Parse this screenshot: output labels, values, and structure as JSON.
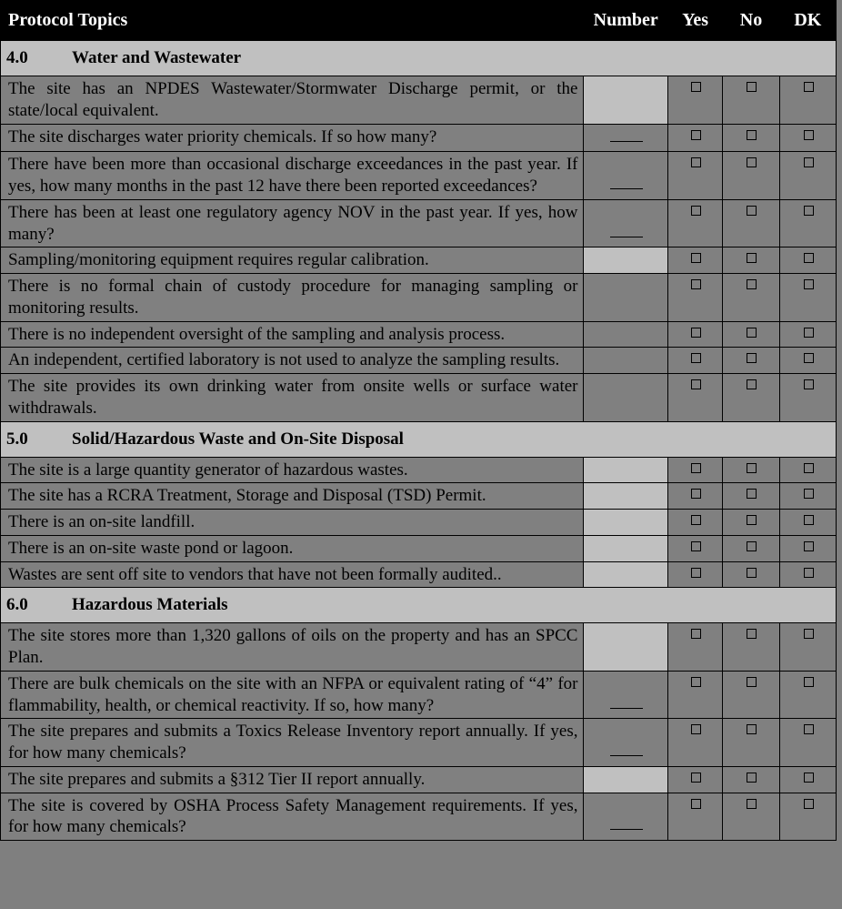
{
  "colors": {
    "header_bg": "#000000",
    "header_fg": "#ffffff",
    "section_bg": "#c0c0c0",
    "row_bg": "#808080",
    "number_light_bg": "#c0c0c0",
    "border": "#000000",
    "page_bg": "#7f7f7f",
    "checkbox_border": "#000000"
  },
  "typography": {
    "font_family": "Times New Roman",
    "header_fontsize_pt": 15,
    "section_fontsize_pt": 14,
    "body_fontsize_pt": 14
  },
  "columns": {
    "topic": "Protocol Topics",
    "number": "Number",
    "yes": "Yes",
    "no": "No",
    "dk": "DK"
  },
  "sections": [
    {
      "number": "4.0",
      "title": "Water and Wastewater",
      "rows": [
        {
          "text": "The site has an NPDES Wastewater/Stormwater Discharge permit, or the state/local equivalent.",
          "number_cell": "light"
        },
        {
          "text": "The site discharges water priority chemicals.  If so how many?",
          "number_cell": "blank"
        },
        {
          "text": "There have been more than occasional discharge exceedances in the past year.  If yes, how many months in the past 12 have there been reported exceedances?",
          "number_cell": "blank"
        },
        {
          "text": "There has been at least one regulatory agency NOV in the past year.  If yes, how many?",
          "number_cell": "blank"
        },
        {
          "text": "Sampling/monitoring equipment requires regular calibration.",
          "number_cell": "light"
        },
        {
          "text": "There is no formal chain of custody procedure for managing sampling or monitoring results.",
          "number_cell": "none"
        },
        {
          "text": "There is no independent oversight of the sampling and analysis process.",
          "number_cell": "none"
        },
        {
          "text": "An independent, certified laboratory is not used to analyze the sampling results.",
          "number_cell": "none"
        },
        {
          "text": "The site provides its own drinking water from onsite wells or surface water withdrawals.",
          "number_cell": "none"
        }
      ]
    },
    {
      "number": "5.0",
      "title": "Solid/Hazardous Waste and On-Site Disposal",
      "rows": [
        {
          "text": "The site is a large quantity generator of hazardous wastes.",
          "number_cell": "light"
        },
        {
          "text": "The site has a RCRA Treatment, Storage and Disposal (TSD) Permit.",
          "number_cell": "light"
        },
        {
          "text": "There is an on-site landfill.",
          "number_cell": "light"
        },
        {
          "text": "There is an on-site waste pond or lagoon.",
          "number_cell": "light"
        },
        {
          "text": "Wastes are sent off site to vendors that have not been formally audited..",
          "number_cell": "light"
        }
      ]
    },
    {
      "number": "6.0",
      "title": "Hazardous Materials",
      "rows": [
        {
          "text": "The site stores more than 1,320 gallons of oils on the property and has an SPCC Plan.",
          "number_cell": "light"
        },
        {
          "text": "There are bulk chemicals on the site with an NFPA or equivalent rating of “4” for flammability, health, or chemical reactivity.  If so, how many?",
          "number_cell": "blank"
        },
        {
          "text": "The site prepares and submits a Toxics Release Inventory report annually.  If yes, for how many chemicals?",
          "number_cell": "blank"
        },
        {
          "text": "The site prepares and submits a §312 Tier II report annually.",
          "number_cell": "light"
        },
        {
          "text": "The site is covered by OSHA Process Safety Management requirements.  If yes, for how many chemicals?",
          "number_cell": "blank"
        }
      ]
    }
  ]
}
